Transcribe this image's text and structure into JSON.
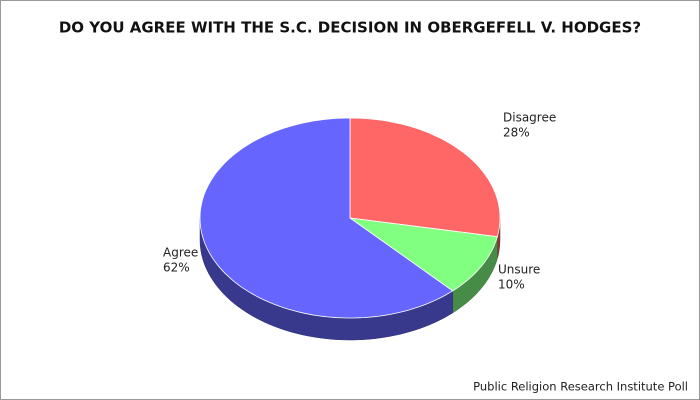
{
  "chart_data": {
    "type": "pie3d",
    "title": "DO YOU AGREE WITH THE S.C. DECISION IN OBERGEFELL V. HODGES?",
    "categories": [
      "Disagree",
      "Unsure",
      "Agree"
    ],
    "values": [
      28,
      10,
      62
    ],
    "value_labels": [
      "28%",
      "10%",
      "62%"
    ],
    "colors": [
      "#ff6666",
      "#80ff80",
      "#6666ff"
    ],
    "source": "Public Religion Research Institute Poll"
  }
}
